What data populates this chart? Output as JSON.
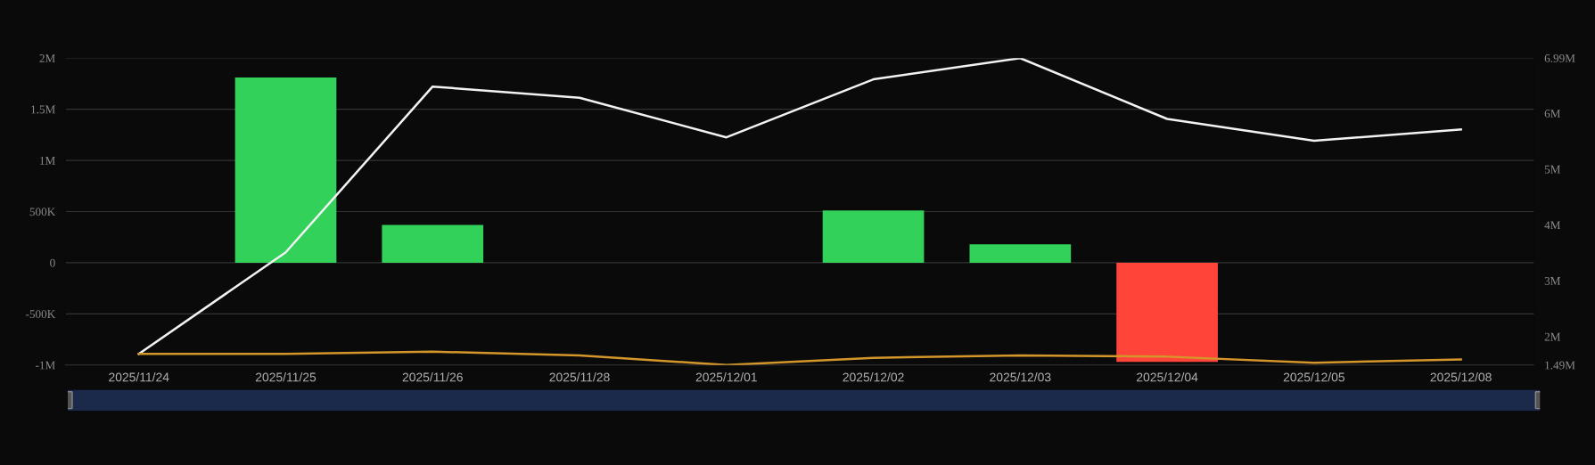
{
  "chart_data": {
    "type": "bar",
    "categories": [
      "2025/11/24",
      "2025/11/25",
      "2025/11/26",
      "2025/11/28",
      "2025/12/01",
      "2025/12/02",
      "2025/12/03",
      "2025/12/04",
      "2025/12/05",
      "2025/12/08"
    ],
    "series": [
      {
        "colors": [
          "#32d15a",
          "#32d15a",
          "#32d15a",
          "#32d15a",
          "#32d15a",
          "#32d15a",
          "#32d15a",
          "#ff453a",
          "#32d15a",
          "#32d15a"
        ],
        "values": [
          null,
          1810000,
          370000,
          null,
          null,
          510000,
          180000,
          -970000,
          null,
          null
        ]
      },
      {
        "type": "line",
        "axis": "y2",
        "color": "#f2f2f2",
        "values": [
          1690000,
          3510000,
          6480000,
          6280000,
          5570000,
          6610000,
          6990000,
          5900000,
          5510000,
          5710000
        ]
      },
      {
        "type": "line",
        "axis": "y2",
        "color": "#d4962a",
        "values": [
          1690000,
          1690000,
          1730000,
          1660000,
          1490000,
          1620000,
          1660000,
          1640000,
          1530000,
          1590000
        ]
      }
    ],
    "ylim": [
      -1000000,
      2000000
    ],
    "yticks": [
      {
        "value": -1000000,
        "label": "-1M"
      },
      {
        "value": -500000,
        "label": "-500K"
      },
      {
        "value": 0,
        "label": "0"
      },
      {
        "value": 500000,
        "label": "500K"
      },
      {
        "value": 1000000,
        "label": "1M"
      },
      {
        "value": 1500000,
        "label": "1.5M"
      },
      {
        "value": 2000000,
        "label": "2M"
      }
    ],
    "y2lim": [
      1490000,
      6990000
    ],
    "y2ticks": [
      {
        "value": 1490000,
        "label": "1.49M"
      },
      {
        "value": 2000000,
        "label": "2M"
      },
      {
        "value": 3000000,
        "label": "3M"
      },
      {
        "value": 4000000,
        "label": "4M"
      },
      {
        "value": 5000000,
        "label": "5M"
      },
      {
        "value": 6000000,
        "label": "6M"
      },
      {
        "value": 6990000,
        "label": "6.99M"
      }
    ],
    "grid": "y",
    "marker": "none",
    "line_style": "solid",
    "legend": false
  }
}
